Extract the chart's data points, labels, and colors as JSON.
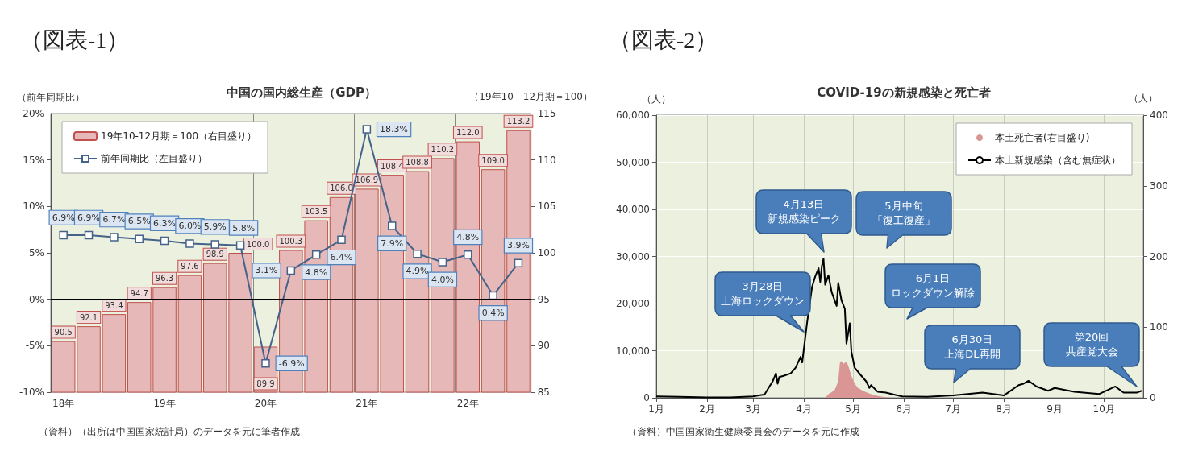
{
  "chart_data": [
    {
      "type": "bar",
      "title": "（図表-1）",
      "subtitle": "中国の国内総生産（GDP）",
      "ylabel": "（前年同期比）",
      "y2label": "（19年10－12月期＝100）",
      "categories": [
        "18年",
        null,
        null,
        null,
        "19年",
        null,
        null,
        null,
        "20年",
        null,
        null,
        null,
        "21年",
        null,
        null,
        null,
        "22年",
        null,
        null
      ],
      "series": [
        {
          "name": "19年10-12月期＝100（右目盛り）",
          "axis": "y2",
          "color": "#e6b9b8",
          "values": [
            90.5,
            92.1,
            93.4,
            94.7,
            96.3,
            97.6,
            98.9,
            100.0,
            89.9,
            100.3,
            103.5,
            106.0,
            106.9,
            108.4,
            108.8,
            110.2,
            112.0,
            109.0,
            113.2
          ],
          "value_labels": [
            "90.5",
            "92.1",
            "93.4",
            "94.7",
            "96.3",
            "97.6",
            "98.9",
            "100.0",
            "89.9",
            "100.3",
            "103.5",
            "106.0",
            "106.9",
            "108.4",
            "108.8",
            "110.2",
            "112.0",
            "109.0",
            "113.2"
          ]
        },
        {
          "name": "前年同期比（左目盛り）",
          "type": "line",
          "color": "#44628a",
          "values": [
            6.9,
            6.9,
            6.7,
            6.5,
            6.3,
            6.0,
            5.9,
            5.8,
            -6.9,
            3.1,
            4.8,
            6.4,
            18.3,
            7.9,
            4.9,
            4.0,
            4.8,
            0.4,
            3.9
          ],
          "value_labels": [
            "6.9%",
            "6.9%",
            "6.7%",
            "6.5%",
            "6.3%",
            "6.0%",
            "5.9%",
            "5.8%",
            "-6.9%",
            "3.1%",
            "4.8%",
            "6.4%",
            "18.3%",
            "7.9%",
            "4.9%",
            "4.0%",
            "4.8%",
            "0.4%",
            "3.9%"
          ]
        }
      ],
      "ylim": [
        -10,
        20
      ],
      "yticks": [
        {
          "value": -10,
          "label": "-10%"
        },
        {
          "value": -5,
          "label": "-5%"
        },
        {
          "value": 0,
          "label": "0%"
        },
        {
          "value": 5,
          "label": "5%"
        },
        {
          "value": 10,
          "label": "10%"
        },
        {
          "value": 15,
          "label": "15%"
        },
        {
          "value": 20,
          "label": "20%"
        }
      ],
      "y2lim": [
        85,
        115
      ],
      "y2ticks": [
        85,
        90,
        95,
        100,
        105,
        110,
        115
      ],
      "ref_lines": [
        {
          "axis": "y",
          "value": 0,
          "color": "#000000"
        }
      ],
      "grid": "x",
      "legend": "top left",
      "marker": "square",
      "annotations": [
        "（資料）（出所は中国国家統計局）のデータを元に筆者作成"
      ]
    },
    {
      "type": "line",
      "title": "（図表-2）",
      "subtitle": "COVID-19の新規感染と死亡者",
      "ylabel": "（人）",
      "y2label": "（人）",
      "xlim": [
        "--01-01",
        "--10-25"
      ],
      "xticks": [
        {
          "value": "--01-01",
          "label": "1月"
        },
        {
          "value": "--02-01",
          "label": "2月"
        },
        {
          "value": "--03-01",
          "label": "3月"
        },
        {
          "value": "--04-01",
          "label": "4月"
        },
        {
          "value": "--05-01",
          "label": "5月"
        },
        {
          "value": "--06-01",
          "label": "6月"
        },
        {
          "value": "--07-01",
          "label": "7月"
        },
        {
          "value": "--08-01",
          "label": "8月"
        },
        {
          "value": "--09-01",
          "label": "9月"
        },
        {
          "value": "--10-01",
          "label": "10月"
        }
      ],
      "ylim": [
        0,
        60000
      ],
      "yticks": [
        {
          "value": 0,
          "label": "0"
        },
        {
          "value": 10000,
          "label": "10,000"
        },
        {
          "value": 20000,
          "label": "20,000"
        },
        {
          "value": 30000,
          "label": "30,000"
        },
        {
          "value": 40000,
          "label": "40,000"
        },
        {
          "value": 50000,
          "label": "50,000"
        },
        {
          "value": 60000,
          "label": "60,000"
        }
      ],
      "y2lim": [
        0,
        400
      ],
      "y2ticks": [
        0,
        100,
        200,
        300,
        400
      ],
      "series": [
        {
          "name": "本土死亡者(右目盛り)",
          "type": "area",
          "axis": "y2",
          "color": "#da9694",
          "x": [
            "--04-14",
            "--04-16",
            "--04-18",
            "--04-20",
            "--04-22",
            "--04-23",
            "--04-24",
            "--04-25",
            "--04-27",
            "--04-28",
            "--04-30",
            "--05-02",
            "--05-04",
            "--05-07",
            "--05-11",
            "--05-15",
            "--05-20",
            "--05-25"
          ],
          "values": [
            0,
            5,
            8,
            12,
            24,
            50,
            52,
            48,
            51,
            46,
            31,
            20,
            14,
            10,
            6,
            3,
            1,
            0
          ]
        },
        {
          "name": "本土新規感染（含む無症状）",
          "color": "#000000",
          "x": [
            "--01-01",
            "--01-15",
            "--02-01",
            "--02-15",
            "--03-01",
            "--03-06",
            "--03-08",
            "--03-11",
            "--03-13",
            "--03-15",
            "--03-16",
            "--03-17",
            "--03-20",
            "--03-24",
            "--03-27",
            "--03-30",
            "--03-31",
            "--04-02",
            "--04-03",
            "--04-06",
            "--04-08",
            "--04-10",
            "--04-11",
            "--04-12",
            "--04-13",
            "--04-14",
            "--04-16",
            "--04-18",
            "--04-21",
            "--04-22",
            "--04-24",
            "--04-26",
            "--04-27",
            "--04-29",
            "--04-30",
            "--05-02",
            "--05-06",
            "--05-09",
            "--05-11",
            "--05-12",
            "--05-16",
            "--05-21",
            "--05-26",
            "--05-31",
            "--06-15",
            "--07-01",
            "--07-19",
            "--08-01",
            "--08-10",
            "--08-13",
            "--08-16",
            "--08-21",
            "--08-28",
            "--09-01",
            "--09-13",
            "--09-28",
            "--10-08",
            "--10-13",
            "--10-21",
            "--10-24"
          ],
          "values": [
            300,
            200,
            100,
            100,
            300,
            600,
            700,
            2400,
            3500,
            5200,
            3000,
            4400,
            4700,
            5200,
            6400,
            8700,
            7500,
            13200,
            16000,
            23500,
            25800,
            27500,
            24600,
            28000,
            29500,
            24000,
            26000,
            22400,
            19500,
            24400,
            20600,
            18900,
            11500,
            15800,
            9800,
            6400,
            4700,
            3500,
            2100,
            2700,
            1300,
            1100,
            700,
            300,
            200,
            500,
            1100,
            500,
            2700,
            3000,
            3600,
            2400,
            1500,
            2100,
            1300,
            800,
            2400,
            1100,
            1100,
            1500
          ]
        }
      ],
      "grid": true,
      "legend": "top right",
      "marker": "none",
      "annotations": [
        "3月28日上海ロックダウン",
        "4月13日新規感染ピーク",
        "5月中旬「復工復産」",
        "6月1日ロックダウン解除",
        "6月30日上海DL再開",
        "第20回共産党大会",
        "（資料）中国国家衛生健康委員会のデータを元に作成"
      ]
    }
  ]
}
